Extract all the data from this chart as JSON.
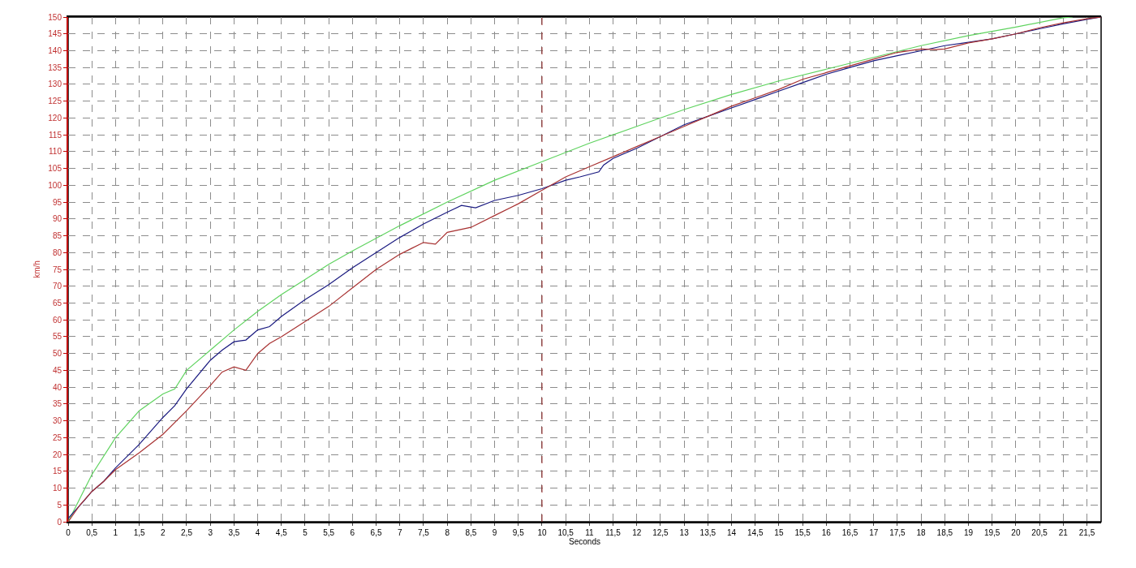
{
  "chart_data": {
    "type": "line",
    "xlabel": "Seconds",
    "ylabel": "km/h",
    "xlim": [
      0,
      21.8
    ],
    "ylim": [
      0,
      150
    ],
    "xticks": [
      0,
      {
        "value": 0.5,
        "label": "0,5"
      },
      1,
      {
        "value": 1.5,
        "label": "1,5"
      },
      2,
      {
        "value": 2.5,
        "label": "2,5"
      },
      3,
      {
        "value": 3.5,
        "label": "3,5"
      },
      4,
      {
        "value": 4.5,
        "label": "4,5"
      },
      5,
      {
        "value": 5.5,
        "label": "5,5"
      },
      6,
      {
        "value": 6.5,
        "label": "6,5"
      },
      7,
      {
        "value": 7.5,
        "label": "7,5"
      },
      8,
      {
        "value": 8.5,
        "label": "8,5"
      },
      9,
      {
        "value": 9.5,
        "label": "9,5"
      },
      10,
      {
        "value": 10.5,
        "label": "10,5"
      },
      11,
      {
        "value": 11.5,
        "label": "11,5"
      },
      12,
      {
        "value": 12.5,
        "label": "12,5"
      },
      13,
      {
        "value": 13.5,
        "label": "13,5"
      },
      14,
      {
        "value": 14.5,
        "label": "14,5"
      },
      15,
      {
        "value": 15.5,
        "label": "15,5"
      },
      16,
      {
        "value": 16.5,
        "label": "16,5"
      },
      17,
      {
        "value": 17.5,
        "label": "17,5"
      },
      18,
      {
        "value": 18.5,
        "label": "18,5"
      },
      19,
      {
        "value": 19.5,
        "label": "19,5"
      },
      20,
      {
        "value": 20.5,
        "label": "20,5"
      },
      21,
      {
        "value": 21.5,
        "label": "21,5"
      }
    ],
    "yticks": [
      0,
      5,
      10,
      15,
      20,
      25,
      30,
      35,
      40,
      45,
      50,
      55,
      60,
      65,
      70,
      75,
      80,
      85,
      90,
      95,
      100,
      105,
      110,
      115,
      120,
      125,
      130,
      135,
      140,
      145,
      150
    ],
    "grid": true,
    "legend": false,
    "marker": "none",
    "line_style": "solid",
    "ref_lines": [
      {
        "axis": "x",
        "value": 10,
        "color": "#8b1a1a",
        "line_style": "dashed"
      }
    ],
    "series": [
      {
        "color": "#5fd35f",
        "x": [
          0,
          0.25,
          0.5,
          1,
          1.5,
          2,
          2.25,
          2.5,
          3,
          3.5,
          4,
          4.5,
          5,
          5.5,
          6,
          7,
          8,
          9,
          10,
          11,
          12,
          13,
          14,
          15,
          16,
          17,
          18,
          19,
          20,
          21,
          21.2
        ],
        "values": [
          0,
          7,
          14,
          25,
          33,
          38,
          39.5,
          45,
          51,
          57,
          62.5,
          67.5,
          72,
          76.5,
          80.5,
          88,
          95,
          101.5,
          107,
          112.5,
          117.5,
          122.5,
          127,
          131,
          134.5,
          138,
          141.5,
          144.5,
          147,
          149.8,
          150
        ]
      },
      {
        "color": "#1a1a80",
        "x": [
          0,
          0.35,
          0.5,
          0.75,
          1,
          1.5,
          2,
          2.25,
          2.5,
          3,
          3.25,
          3.5,
          3.75,
          4,
          4.25,
          4.5,
          5,
          5.5,
          6,
          6.5,
          7,
          7.5,
          8,
          8.3,
          8.6,
          9,
          9.5,
          10,
          10.5,
          10.8,
          11.2,
          11.3,
          11.5,
          12,
          12.5,
          13,
          13.5,
          14,
          14.5,
          15,
          15.5,
          16,
          16.5,
          17,
          17.5,
          18,
          18.5,
          19,
          19.5,
          20,
          20.5,
          21,
          21.5,
          21.8
        ],
        "values": [
          1,
          6.5,
          9,
          12,
          16,
          23,
          31,
          34.5,
          39.5,
          48,
          51,
          53.5,
          54,
          57,
          58,
          61,
          66,
          70.5,
          75.5,
          80,
          84.5,
          88.5,
          92,
          94,
          93.3,
          95.5,
          97,
          99,
          101.5,
          102.5,
          104,
          106,
          108,
          111,
          114.5,
          118,
          120.5,
          123,
          125.5,
          128,
          130.5,
          133,
          135,
          137,
          138.5,
          140,
          141.5,
          142.5,
          143.5,
          145,
          146.5,
          148,
          149.3,
          150
        ]
      },
      {
        "color": "#a83232",
        "x": [
          0,
          0.25,
          0.5,
          0.75,
          1,
          1.5,
          2,
          2.5,
          3,
          3.25,
          3.5,
          3.75,
          4,
          4.25,
          4.5,
          5,
          5.5,
          6,
          6.5,
          7,
          7.5,
          7.75,
          8,
          8.5,
          9,
          9.5,
          10,
          10.5,
          11,
          11.5,
          12,
          12.5,
          13,
          13.5,
          14,
          14.5,
          15,
          15.5,
          16,
          16.5,
          17,
          17.5,
          18,
          18.3,
          18.5,
          19,
          19.5,
          20,
          20.5,
          21,
          21.5,
          21.8
        ],
        "values": [
          0,
          5,
          9,
          12,
          15.5,
          20.5,
          26,
          33,
          40.5,
          44.5,
          46,
          45,
          50,
          53,
          55,
          59.5,
          64,
          69.5,
          75,
          79.5,
          83,
          82.5,
          86,
          87.5,
          91,
          94.5,
          98.5,
          102.5,
          105.5,
          108.5,
          111.5,
          114.5,
          117.5,
          120.5,
          123.5,
          126,
          128.5,
          131.5,
          133.5,
          135.5,
          137.5,
          139.5,
          140.5,
          140.3,
          140.5,
          142.3,
          143.5,
          145,
          146.8,
          148.3,
          149.5,
          150
        ]
      }
    ]
  }
}
